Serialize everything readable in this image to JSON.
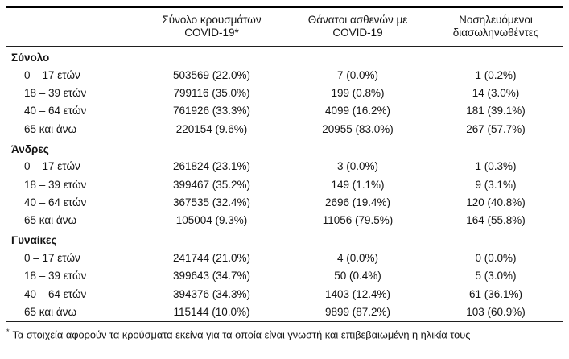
{
  "colors": {
    "text": "#141414",
    "rule_heavy": "#000000",
    "rule_light": "#1f1f1f",
    "background": "#ffffff"
  },
  "header": {
    "columns": [
      {
        "line1": "Σύνολο κρουσμάτων",
        "line2": "COVID-19*"
      },
      {
        "line1": "Θάνατοι ασθενών με",
        "line2": "COVID-19"
      },
      {
        "line1": "Νοσηλευόμενοι",
        "line2": "διασωληνωθέντες"
      }
    ]
  },
  "table": {
    "sections": [
      {
        "name": "Σύνολο",
        "rows": [
          {
            "age": "0 – 17 ετών",
            "cases": "503569 (22.0%)",
            "deaths": "7 (0.0%)",
            "intubated": "1 (0.2%)"
          },
          {
            "age": "18 – 39 ετών",
            "cases": "799116 (35.0%)",
            "deaths": "199 (0.8%)",
            "intubated": "14 (3.0%)"
          },
          {
            "age": "40 – 64 ετών",
            "cases": "761926 (33.3%)",
            "deaths": "4099 (16.2%)",
            "intubated": "181 (39.1%)"
          },
          {
            "age": "65 και άνω",
            "cases": "220154 (9.6%)",
            "deaths": "20955 (83.0%)",
            "intubated": "267 (57.7%)"
          }
        ]
      },
      {
        "name": "Άνδρες",
        "rows": [
          {
            "age": "0 – 17 ετών",
            "cases": "261824 (23.1%)",
            "deaths": "3 (0.0%)",
            "intubated": "1 (0.3%)"
          },
          {
            "age": "18 – 39 ετών",
            "cases": "399467 (35.2%)",
            "deaths": "149 (1.1%)",
            "intubated": "9 (3.1%)"
          },
          {
            "age": "40 – 64 ετών",
            "cases": "367535 (32.4%)",
            "deaths": "2696 (19.4%)",
            "intubated": "120 (40.8%)"
          },
          {
            "age": "65 και άνω",
            "cases": "105004 (9.3%)",
            "deaths": "11056 (79.5%)",
            "intubated": "164 (55.8%)"
          }
        ]
      },
      {
        "name": "Γυναίκες",
        "rows": [
          {
            "age": "0 – 17 ετών",
            "cases": "241744 (21.0%)",
            "deaths": "4 (0.0%)",
            "intubated": "0 (0.0%)"
          },
          {
            "age": "18 – 39 ετών",
            "cases": "399643 (34.7%)",
            "deaths": "50 (0.4%)",
            "intubated": "5 (3.0%)"
          },
          {
            "age": "40 – 64 ετών",
            "cases": "394376 (34.3%)",
            "deaths": "1403 (12.4%)",
            "intubated": "61 (36.1%)"
          },
          {
            "age": "65 και άνω",
            "cases": "115144 (10.0%)",
            "deaths": "9899 (87.2%)",
            "intubated": "103 (60.9%)"
          }
        ]
      }
    ]
  },
  "footnote": {
    "marker": "*",
    "text": "Τα στοιχεία αφορούν τα κρούσματα εκείνα για τα οποία είναι γνωστή και επιβεβαιωμένη η ηλικία τους"
  }
}
